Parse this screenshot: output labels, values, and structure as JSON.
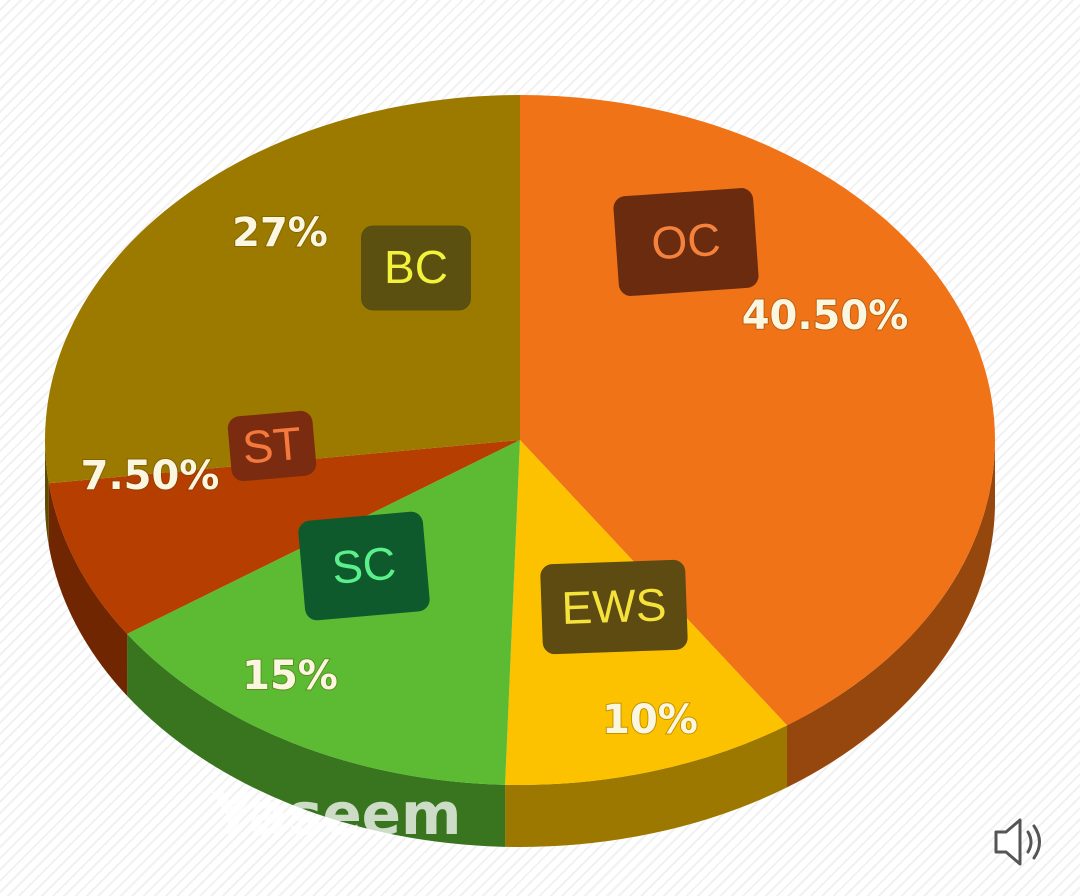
{
  "chart_data": {
    "type": "pie",
    "categories": [
      "OC",
      "EWS",
      "SC",
      "ST",
      "BC"
    ],
    "values": [
      40.5,
      10,
      15,
      7.5,
      27
    ],
    "value_labels": [
      "40.50%",
      "10%",
      "15%",
      "7.50%",
      "27%"
    ],
    "colors": [
      "#f07318",
      "#fcc200",
      "#5cbb33",
      "#b53e00",
      "#9c7a00"
    ],
    "watermark": "Yaseem"
  }
}
